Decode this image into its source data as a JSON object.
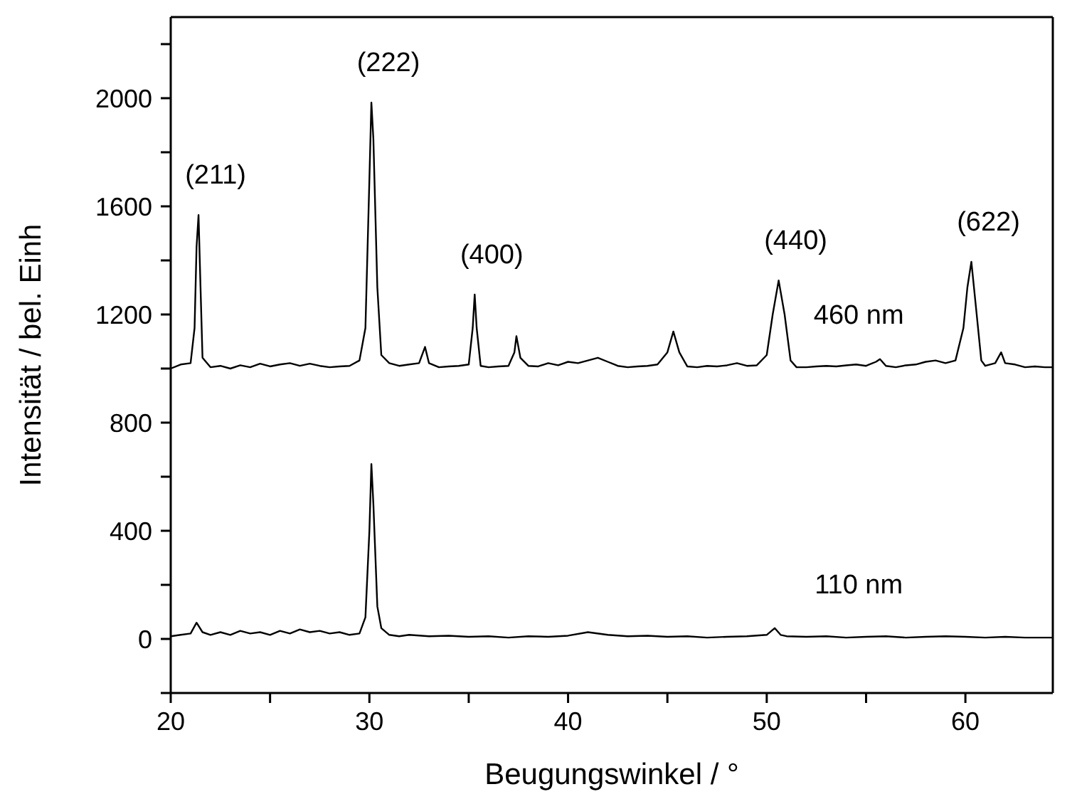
{
  "chart_data": {
    "type": "line",
    "xlabel": "Beugungswinkel / °",
    "ylabel": "Intensität / bel. Einh",
    "xlim": [
      20,
      64.4
    ],
    "ylim": [
      -200,
      2300
    ],
    "xticks": [
      20,
      {
        "value": 25,
        "label": null
      },
      30,
      {
        "value": 35,
        "label": null
      },
      40,
      {
        "value": 45,
        "label": null
      },
      50,
      {
        "value": 55,
        "label": null
      },
      60
    ],
    "yticks": [
      {
        "value": -200,
        "label": null
      },
      0,
      {
        "value": 200,
        "label": null
      },
      400,
      {
        "value": 600,
        "label": null
      },
      800,
      {
        "value": 1000,
        "label": null
      },
      1200,
      {
        "value": 1400,
        "label": null
      },
      1600,
      {
        "value": 1800,
        "label": null
      },
      2000,
      {
        "value": 2200,
        "label": null
      }
    ],
    "marker": "none",
    "line_style": "solid",
    "annotations": [
      {
        "text": "(211)",
        "x": 21.4,
        "y": 1568
      },
      {
        "text": "(222)",
        "x": 30.1,
        "y": 1984
      },
      {
        "text": "(400)",
        "x": 35.3,
        "y": 1274
      },
      {
        "text": "(440)",
        "x": 50.6,
        "y": 1326
      },
      {
        "text": "(622)",
        "x": 60.3,
        "y": 1395
      }
    ],
    "series": [
      {
        "name": "460 nm",
        "color": "#000000",
        "x": [
          20,
          20.5,
          21,
          21.2,
          21.3,
          21.4,
          21.5,
          21.6,
          22,
          22.5,
          23,
          23.5,
          24,
          24.5,
          25,
          25.5,
          26,
          26.5,
          27,
          27.5,
          28,
          28.5,
          29,
          29.5,
          29.8,
          30.0,
          30.1,
          30.2,
          30.4,
          30.6,
          31,
          31.5,
          32,
          32.5,
          32.8,
          33.0,
          33.5,
          34,
          34.5,
          35,
          35.2,
          35.3,
          35.4,
          35.6,
          36,
          36.5,
          37,
          37.3,
          37.4,
          37.6,
          38,
          38.5,
          39,
          39.5,
          40,
          40.5,
          41,
          41.5,
          42,
          42.5,
          43,
          43.5,
          44,
          44.5,
          45,
          45.3,
          45.6,
          46,
          46.5,
          47,
          47.5,
          48,
          48.5,
          49,
          49.5,
          50,
          50.3,
          50.6,
          50.9,
          51.2,
          51.5,
          52,
          52.5,
          53,
          53.5,
          54,
          54.5,
          55,
          55.5,
          55.7,
          56,
          56.5,
          57,
          57.5,
          58,
          58.5,
          59,
          59.5,
          59.9,
          60.1,
          60.3,
          60.5,
          60.8,
          61,
          61.5,
          61.8,
          62,
          62.5,
          63,
          63.5,
          64,
          64.4
        ],
        "values": [
          1000,
          1015,
          1020,
          1150,
          1450,
          1568,
          1300,
          1040,
          1005,
          1010,
          1000,
          1012,
          1005,
          1018,
          1008,
          1015,
          1020,
          1010,
          1018,
          1010,
          1005,
          1008,
          1010,
          1030,
          1150,
          1700,
          1984,
          1850,
          1300,
          1050,
          1020,
          1010,
          1015,
          1020,
          1080,
          1020,
          1005,
          1008,
          1010,
          1015,
          1150,
          1274,
          1150,
          1010,
          1005,
          1008,
          1010,
          1060,
          1120,
          1040,
          1010,
          1008,
          1020,
          1012,
          1025,
          1020,
          1030,
          1040,
          1025,
          1010,
          1005,
          1008,
          1010,
          1015,
          1060,
          1137,
          1060,
          1008,
          1005,
          1010,
          1008,
          1012,
          1020,
          1010,
          1012,
          1050,
          1200,
          1326,
          1200,
          1030,
          1005,
          1005,
          1008,
          1010,
          1008,
          1012,
          1015,
          1010,
          1025,
          1035,
          1010,
          1005,
          1012,
          1015,
          1025,
          1030,
          1020,
          1030,
          1150,
          1300,
          1395,
          1250,
          1030,
          1010,
          1020,
          1060,
          1020,
          1015,
          1005,
          1008,
          1005,
          1005
        ]
      },
      {
        "name": "110 nm",
        "color": "#000000",
        "x": [
          20,
          20.5,
          21,
          21.3,
          21.6,
          22,
          22.5,
          23,
          23.5,
          24,
          24.5,
          25,
          25.5,
          26,
          26.5,
          27,
          27.5,
          28,
          28.5,
          29,
          29.5,
          29.8,
          30.0,
          30.1,
          30.2,
          30.4,
          30.6,
          31,
          31.5,
          32,
          33,
          34,
          35,
          36,
          37,
          38,
          39,
          40,
          41,
          42,
          43,
          44,
          45,
          46,
          47,
          48,
          49,
          50,
          50.4,
          50.7,
          51,
          52,
          53,
          54,
          55,
          56,
          57,
          58,
          59,
          60,
          61,
          62,
          63,
          64,
          64.4
        ],
        "values": [
          10,
          15,
          20,
          60,
          25,
          15,
          25,
          15,
          30,
          20,
          25,
          15,
          30,
          20,
          35,
          25,
          30,
          20,
          25,
          15,
          20,
          80,
          400,
          647,
          500,
          120,
          40,
          15,
          10,
          15,
          10,
          12,
          8,
          10,
          5,
          10,
          8,
          12,
          25,
          15,
          10,
          12,
          8,
          10,
          5,
          8,
          10,
          15,
          40,
          15,
          10,
          8,
          10,
          5,
          8,
          10,
          5,
          8,
          10,
          8,
          5,
          8,
          5,
          5,
          5
        ]
      }
    ]
  }
}
